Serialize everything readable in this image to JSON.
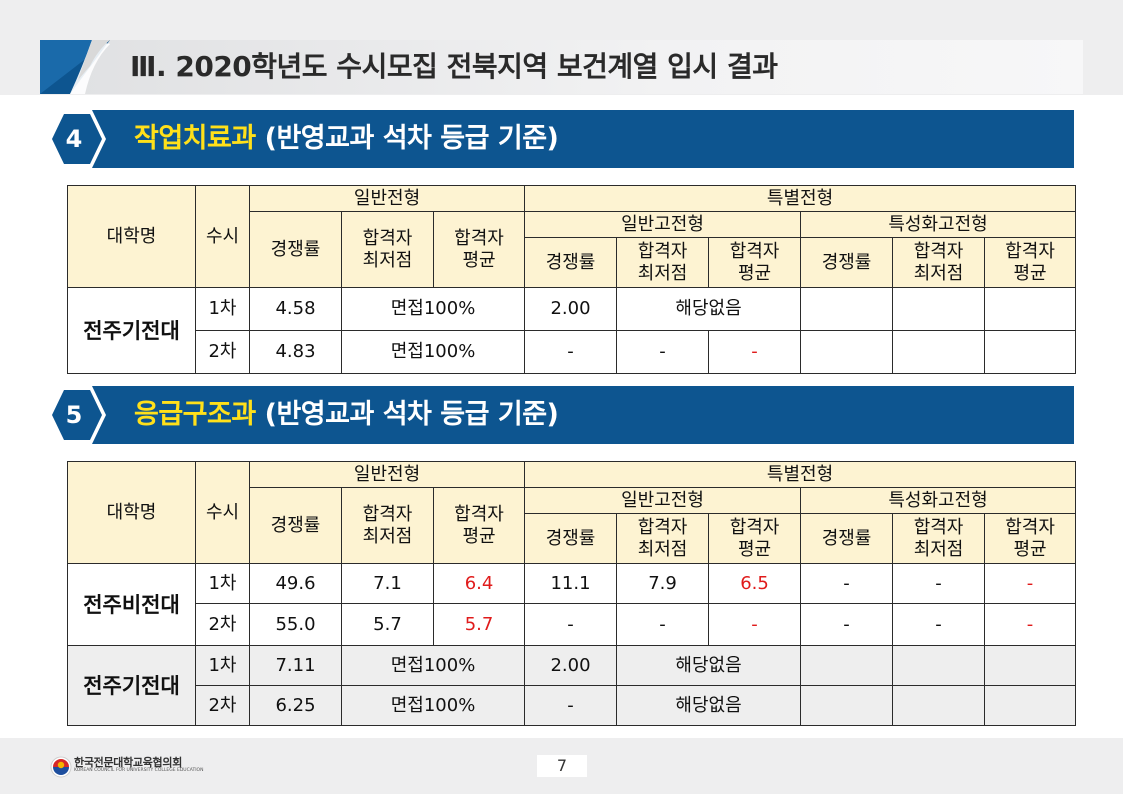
{
  "page_title": "Ⅲ. 2020학년도 수시모집 전북지역 보건계열 입시 결과",
  "sections": [
    {
      "number": "4",
      "dept": "작업치료과",
      "subtitle": " (반영교과  석차 등급 기준)",
      "headers": {
        "univ": "대학명",
        "susi": "수시",
        "general": "일반전형",
        "special": "특별전형",
        "special_general": "일반고전형",
        "special_char": "특성화고전형",
        "rate": "경쟁률",
        "min": "합격자\n최저점",
        "avg": "합격자\n평균"
      },
      "rows": [
        {
          "univ": "전주기전대",
          "round": "1차",
          "g_rate": "4.58",
          "g_note": "면접100%",
          "s1_rate": "2.00",
          "s1_note": "해당없음"
        },
        {
          "round": "2차",
          "g_rate": "4.83",
          "g_note": "면접100%",
          "s1_rate": "-",
          "s1_min": "-",
          "s1_avg": "-"
        }
      ]
    },
    {
      "number": "5",
      "dept": "응급구조과",
      "subtitle": " (반영교과  석차 등급 기준)",
      "headers": {
        "univ": "대학명",
        "susi": "수시",
        "general": "일반전형",
        "special": "특별전형",
        "special_general": "일반고전형",
        "special_char": "특성화고전형",
        "rate": "경쟁률",
        "min": "합격자\n최저점",
        "avg": "합격자\n평균"
      },
      "rows": [
        {
          "univ": "전주비전대",
          "round": "1차",
          "g_rate": "49.6",
          "g_min": "7.1",
          "g_avg": "6.4",
          "s1_rate": "11.1",
          "s1_min": "7.9",
          "s1_avg": "6.5",
          "s2_rate": "-",
          "s2_min": "-",
          "s2_avg": "-"
        },
        {
          "round": "2차",
          "g_rate": "55.0",
          "g_min": "5.7",
          "g_avg": "5.7",
          "s1_rate": "-",
          "s1_min": "-",
          "s1_avg": "-",
          "s2_rate": "-",
          "s2_min": "-",
          "s2_avg": "-"
        },
        {
          "univ": "전주기전대",
          "round": "1차",
          "g_rate": "7.11",
          "g_note": "면접100%",
          "s1_rate": "2.00",
          "s1_note": "해당없음"
        },
        {
          "round": "2차",
          "g_rate": "6.25",
          "g_note": "면접100%",
          "s1_rate": "-",
          "s1_note": "해당없음"
        }
      ]
    }
  ],
  "footer": {
    "org_name": "한국전문대학교육협의회",
    "org_sub": "KOREAN COUNCIL FOR UNIVERSITY COLLEGE EDUCATION",
    "page_number": "7"
  },
  "colors": {
    "band": "#0d5590",
    "dept_text": "#ffe01a",
    "header_fill": "#fdf3d2",
    "highlight": "#e01b1b"
  }
}
